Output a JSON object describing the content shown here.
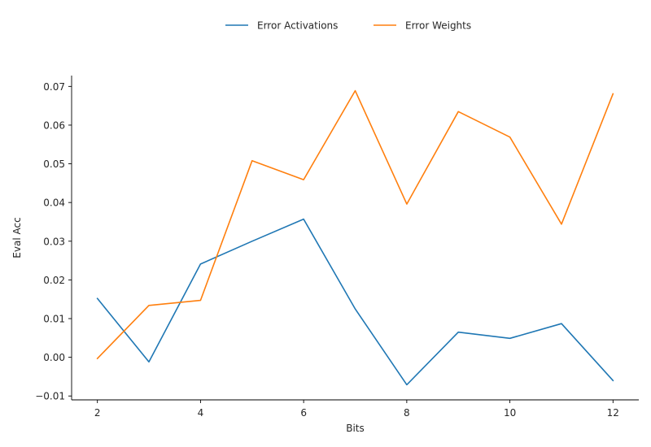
{
  "chart_data": {
    "type": "line",
    "xlabel": "Bits",
    "ylabel": "Eval Acc",
    "x": [
      2,
      3,
      4,
      5,
      6,
      7,
      8,
      9,
      10,
      11,
      12
    ],
    "xlim": [
      1.5,
      12.5
    ],
    "ylim": [
      -0.011,
      0.0728
    ],
    "xticks": [
      2,
      4,
      6,
      8,
      10,
      12
    ],
    "xtick_labels": [
      "2",
      "4",
      "6",
      "8",
      "10",
      "12"
    ],
    "yticks": [
      -0.01,
      0.0,
      0.01,
      0.02,
      0.03,
      0.04,
      0.05,
      0.06,
      0.07
    ],
    "ytick_labels": [
      "−0.01",
      "0.00",
      "0.01",
      "0.02",
      "0.03",
      "0.04",
      "0.05",
      "0.06",
      "0.07"
    ],
    "grid": false,
    "legend_position": "top-center",
    "series": [
      {
        "name": "Error Activations",
        "color": "#1f77b4",
        "values": [
          0.0152,
          -0.0012,
          0.0241,
          0.03,
          0.0357,
          0.0125,
          -0.0071,
          0.0065,
          0.0049,
          0.0087,
          -0.006
        ]
      },
      {
        "name": "Error Weights",
        "color": "#ff7f0e",
        "values": [
          -0.0003,
          0.0134,
          0.0147,
          0.0508,
          0.0459,
          0.0689,
          0.0396,
          0.0635,
          0.0569,
          0.0344,
          0.0681
        ]
      }
    ]
  }
}
